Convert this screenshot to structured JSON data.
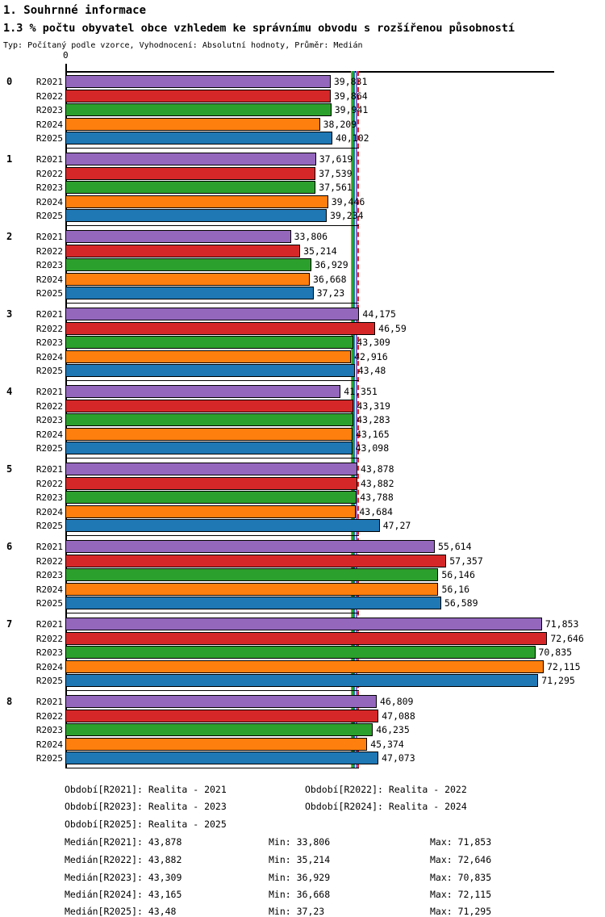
{
  "header": {
    "title": "1. Souhrnné informace",
    "subtitle": "1.3 % počtu obyvatel obce vzhledem ke správnímu obvodu s rozšířenou působností",
    "meta": "Typ: Počítaný podle vzorce, Vyhodnocení: Absolutní hodnoty, Průměr: Medián"
  },
  "chart_data": {
    "type": "bar",
    "orientation": "horizontal",
    "title": "1.3 % počtu obyvatel obce vzhledem ke správnímu obvodu s rozšířenou působností",
    "axis_start_label": "0",
    "xlim": [
      0,
      74
    ],
    "grid": false,
    "categories": [
      "0",
      "1",
      "2",
      "3",
      "4",
      "5",
      "6",
      "7",
      "8"
    ],
    "series": [
      {
        "name": "R2021",
        "color": "#9467bd",
        "displays": [
          "39,831",
          "37,619",
          "33,806",
          "44,175",
          "41,351",
          "43,878",
          "55,614",
          "71,853",
          "46,809"
        ],
        "values": [
          39.831,
          37.619,
          33.806,
          44.175,
          41.351,
          43.878,
          55.614,
          71.853,
          46.809
        ]
      },
      {
        "name": "R2022",
        "color": "#d62728",
        "displays": [
          "39,864",
          "37,539",
          "35,214",
          "46,59",
          "43,319",
          "43,882",
          "57,357",
          "72,646",
          "47,088"
        ],
        "values": [
          39.864,
          37.539,
          35.214,
          46.59,
          43.319,
          43.882,
          57.357,
          72.646,
          47.088
        ]
      },
      {
        "name": "R2023",
        "color": "#2ca02c",
        "displays": [
          "39,941",
          "37,561",
          "36,929",
          "43,309",
          "43,283",
          "43,788",
          "56,146",
          "70,835",
          "46,235"
        ],
        "values": [
          39.941,
          37.561,
          36.929,
          43.309,
          43.283,
          43.788,
          56.146,
          70.835,
          46.235
        ]
      },
      {
        "name": "R2024",
        "color": "#ff7f0e",
        "displays": [
          "38,209",
          "39,446",
          "36,668",
          "42,916",
          "43,165",
          "43,684",
          "56,16",
          "72,115",
          "45,374"
        ],
        "values": [
          38.209,
          39.446,
          36.668,
          42.916,
          43.165,
          43.684,
          56.16,
          72.115,
          45.374
        ]
      },
      {
        "name": "R2025",
        "color": "#1f77b4",
        "displays": [
          "40,102",
          "39,234",
          "37,23",
          "43,48",
          "43,098",
          "47,27",
          "56,589",
          "71,295",
          "47,073"
        ],
        "values": [
          40.102,
          39.234,
          37.23,
          43.48,
          43.098,
          47.27,
          56.589,
          71.295,
          47.073
        ]
      }
    ],
    "median_lines": [
      {
        "series": "R2024",
        "display": "43,165",
        "value": 43.165,
        "style": "solid"
      },
      {
        "series": "R2023",
        "display": "43,309",
        "value": 43.309,
        "style": "solid"
      },
      {
        "series": "R2025",
        "display": "43,48",
        "value": 43.48,
        "style": "solid"
      },
      {
        "series": "R2021",
        "display": "43,878",
        "value": 43.878,
        "style": "solid"
      },
      {
        "series": "R2022",
        "display": "43,882",
        "value": 43.882,
        "style": "dashed"
      }
    ]
  },
  "legend": {
    "items": [
      {
        "label": "Období[R2021]: Realita - 2021"
      },
      {
        "label": "Období[R2022]: Realita - 2022"
      },
      {
        "label": "Období[R2023]: Realita - 2023"
      },
      {
        "label": "Období[R2024]: Realita - 2024"
      },
      {
        "label": "Období[R2025]: Realita - 2025"
      }
    ]
  },
  "stats": [
    {
      "median": "Medián[R2021]: 43,878",
      "min": "Min: 33,806",
      "max": "Max: 71,853"
    },
    {
      "median": "Medián[R2022]: 43,882",
      "min": "Min: 35,214",
      "max": "Max: 72,646"
    },
    {
      "median": "Medián[R2023]: 43,309",
      "min": "Min: 36,929",
      "max": "Max: 70,835"
    },
    {
      "median": "Medián[R2024]: 43,165",
      "min": "Min: 36,668",
      "max": "Max: 72,115"
    },
    {
      "median": "Medián[R2025]: 43,48",
      "min": "Min: 37,23",
      "max": "Max: 71,295"
    }
  ]
}
